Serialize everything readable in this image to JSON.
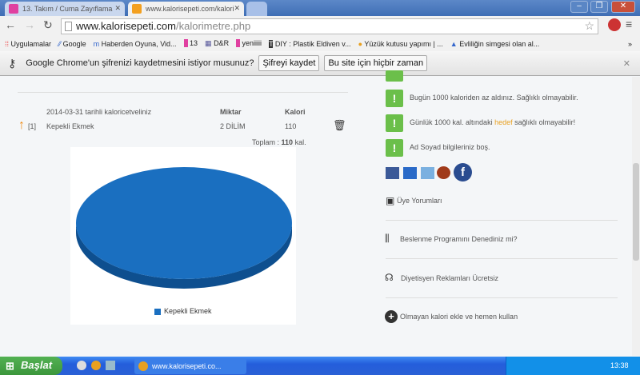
{
  "browser": {
    "tabs": [
      {
        "title": "13. Takım / Cuma Zayıflama",
        "active": false
      },
      {
        "title": "www.kalorisepeti.com/kalori",
        "active": true
      }
    ],
    "url_host": "www.kalorisepeti.com",
    "url_path": "/kalorimetre.php",
    "bookmarks": [
      "Uygulamalar",
      "Google",
      "Haberden Oyuna, Vid...",
      "13",
      "D&R",
      "yeniiiii",
      "DIY : Plastik Eldiven v...",
      "Yüzük kutusu yapımı | ...",
      "Evliliğin simgesi olan al..."
    ],
    "infobar": {
      "message": "Google Chrome'un şifrenizi kaydetmesini istiyor musunuz?",
      "save": "Şifreyi kaydet",
      "never": "Bu site için hiçbir zaman"
    }
  },
  "calorie_table": {
    "title": "2014-03-31 tarihli kaloricetveliniz",
    "col_amount": "Miktar",
    "col_calorie": "Kalori",
    "rows": [
      {
        "index": "[1]",
        "name": "Kepekli Ekmek",
        "amount": "2 DİLİM",
        "calorie": "110"
      }
    ],
    "total_label": "Toplam :",
    "total_value": "110",
    "total_unit": "kal."
  },
  "chart_data": {
    "type": "pie",
    "categories": [
      "Kepekli Ekmek"
    ],
    "values": [
      110
    ],
    "colors": [
      "#1a6fc0"
    ],
    "legend_position": "bottom",
    "style": "3d"
  },
  "sidebar": {
    "warnings": [
      "Bugün 1000 kaloriden az aldınız. Sağlıklı olmayabilir.",
      "Günlük 1000 kal. altındaki",
      "hedef",
      "sağlıklı olmayabilir!",
      "Ad Soyad bilgileriniz boş."
    ],
    "links": [
      "Üye Yorumları",
      "Beslenme Programını Denediniz mi?",
      "Diyetisyen Reklamları Ücretsiz",
      "Olmayan kalori ekle ve hemen kullan"
    ],
    "accent": "#e8a020"
  },
  "taskbar": {
    "start": "Başlat",
    "window": "www.kalorisepeti.co...",
    "clock": "13:38"
  }
}
